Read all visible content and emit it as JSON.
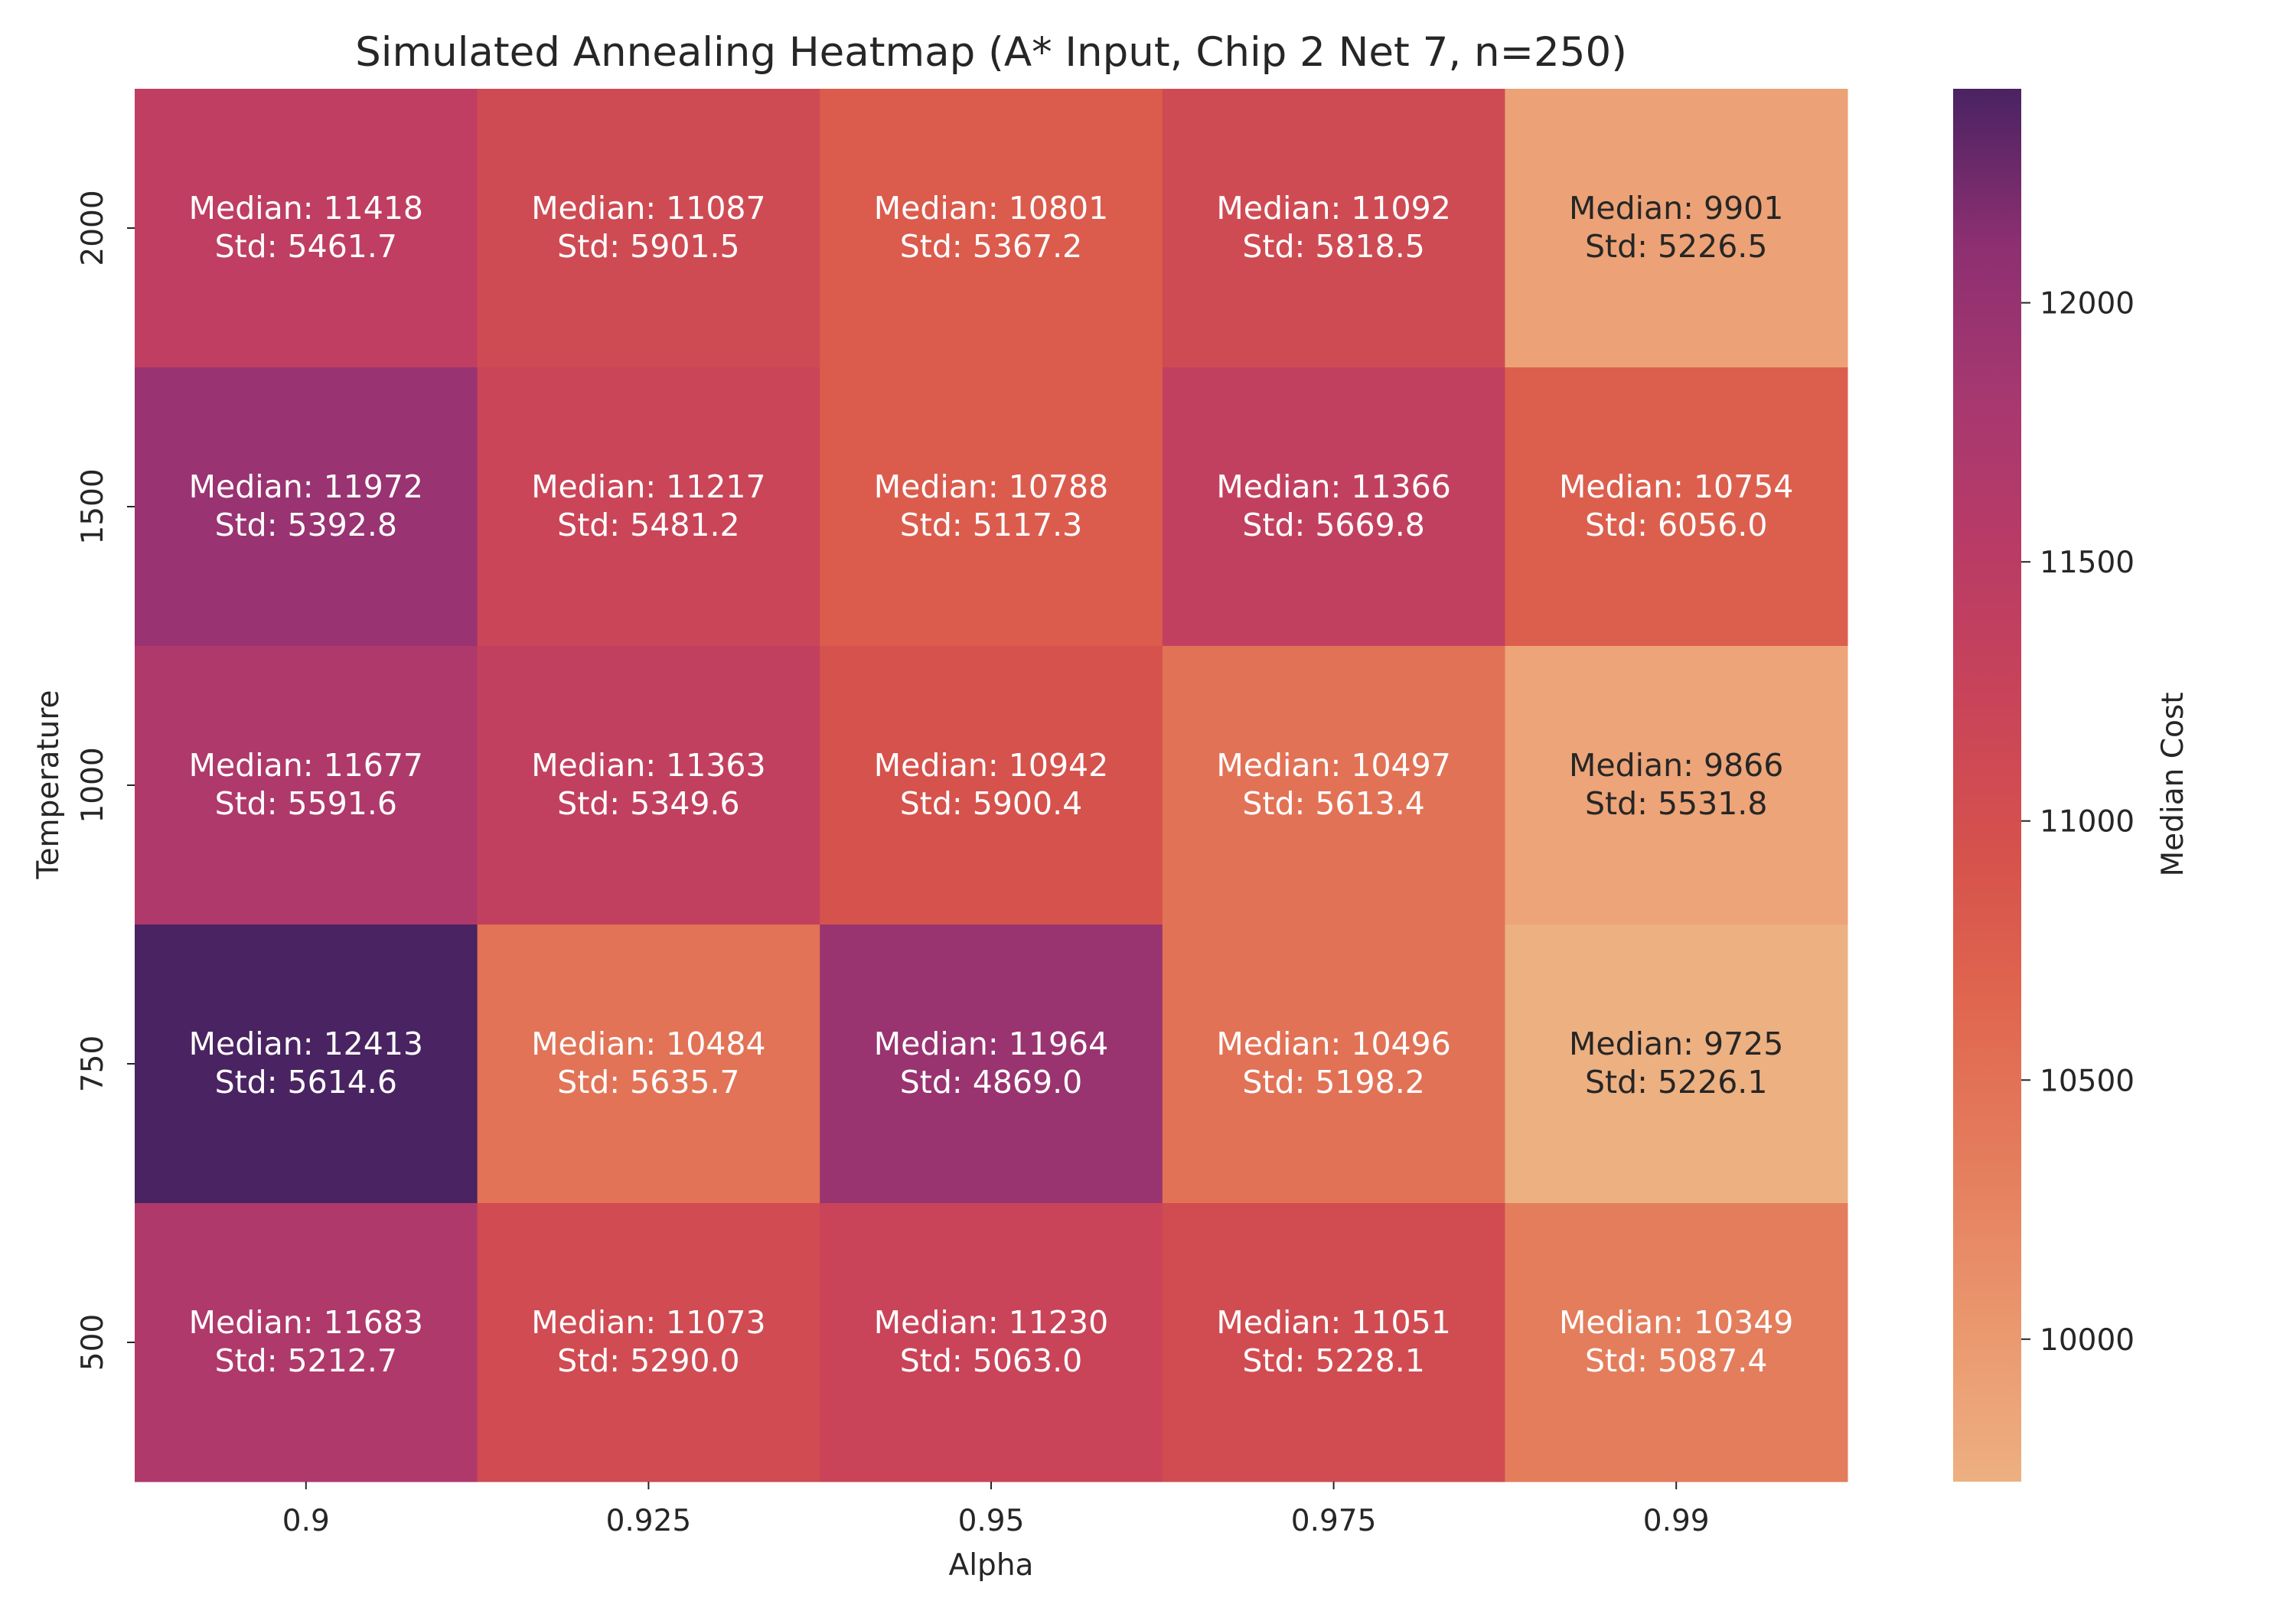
{
  "chart_data": {
    "type": "heatmap",
    "title": "Simulated Annealing Heatmap (A* Input, Chip 2 Net 7, n=250)",
    "xlabel": "Alpha",
    "ylabel": "Temperature",
    "x_categories": [
      "0.9",
      "0.925",
      "0.95",
      "0.975",
      "0.99"
    ],
    "y_categories": [
      "2000",
      "1500",
      "1000",
      "750",
      "500"
    ],
    "median_prefix": "Median: ",
    "std_prefix": "Std: ",
    "median": [
      [
        11418,
        11087,
        10801,
        11092,
        9901
      ],
      [
        11972,
        11217,
        10788,
        11366,
        10754
      ],
      [
        11677,
        11363,
        10942,
        10497,
        9866
      ],
      [
        12413,
        10484,
        11964,
        10496,
        9725
      ],
      [
        11683,
        11073,
        11230,
        11051,
        10349
      ]
    ],
    "std": [
      [
        "5461.7",
        "5901.5",
        "5367.2",
        "5818.5",
        "5226.5"
      ],
      [
        "5392.8",
        "5481.2",
        "5117.3",
        "5669.8",
        "6056.0"
      ],
      [
        "5591.6",
        "5349.6",
        "5900.4",
        "5613.4",
        "5531.8"
      ],
      [
        "5614.6",
        "5635.7",
        "4869.0",
        "5198.2",
        "5226.1"
      ],
      [
        "5212.7",
        "5290.0",
        "5063.0",
        "5228.1",
        "5087.4"
      ]
    ],
    "colorbar": {
      "label": "Median Cost",
      "min": 9725,
      "max": 12413,
      "ticks": [
        10000,
        10500,
        11000,
        11500,
        12000
      ],
      "colormap": "flare",
      "stops": [
        [
          0.0,
          "#edb081"
        ],
        [
          0.1,
          "#eb9a70"
        ],
        [
          0.22,
          "#e57f5e"
        ],
        [
          0.34,
          "#e0674f"
        ],
        [
          0.45,
          "#d6524c"
        ],
        [
          0.56,
          "#c94459"
        ],
        [
          0.67,
          "#b93b66"
        ],
        [
          0.78,
          "#a63870"
        ],
        [
          0.89,
          "#8c2f71"
        ],
        [
          1.0,
          "#4a2362"
        ]
      ]
    },
    "text_colors": {
      "light": "#ffffff",
      "dark": "#262626"
    },
    "grid": false
  }
}
